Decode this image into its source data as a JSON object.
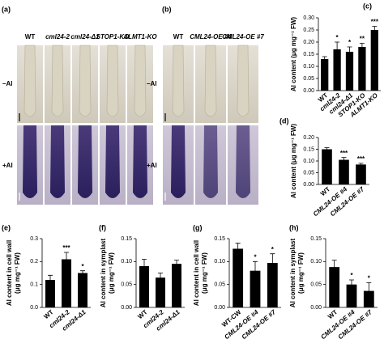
{
  "photos": [
    {
      "panel": "(a)",
      "columns": [
        "WT",
        "cml24-2",
        "cml24-Δ1",
        "STOP1-KO",
        "ALMT1-KO"
      ],
      "rows": [
        "–Al",
        "+Al"
      ]
    },
    {
      "panel": "(b)",
      "columns": [
        "WT",
        "CML24-OE #4",
        "CML24-OE #7"
      ],
      "rows": [
        "–Al",
        "+Al"
      ]
    }
  ],
  "chart_data": [
    {
      "type": "bar",
      "panel": "(c)",
      "ylabel": [
        "Al content (μg mg⁻¹ FW)"
      ],
      "color": "#000000",
      "categories": [
        "WT",
        "cml24-2",
        "cml24-Δ1",
        "STOP1-KO",
        "ALMT1-KO"
      ],
      "values": [
        0.13,
        0.17,
        0.16,
        0.18,
        0.25
      ],
      "errors": [
        0.01,
        0.03,
        0.02,
        0.015,
        0.015
      ],
      "significance": [
        null,
        "*",
        "*",
        "**",
        "***"
      ],
      "ylim": [
        0,
        0.3
      ],
      "yticks": [
        {
          "value": 0,
          "label": "0.00"
        },
        0.05,
        {
          "value": 0.1,
          "label": "0.10"
        },
        0.15,
        {
          "value": 0.2,
          "label": "0.20"
        },
        0.25,
        {
          "value": 0.3,
          "label": "0.30"
        }
      ]
    },
    {
      "type": "bar",
      "panel": "(d)",
      "ylabel": [
        "Al content (μg mg⁻¹ FW)"
      ],
      "color": "#000000",
      "categories": [
        "WT",
        "CML24-OE #4",
        "CML24-OE #7"
      ],
      "values": [
        0.15,
        0.105,
        0.085
      ],
      "errors": [
        0.007,
        0.01,
        0.005
      ],
      "significance": [
        null,
        "***",
        "***"
      ],
      "ylim": [
        0,
        0.2
      ],
      "yticks": [
        {
          "value": 0,
          "label": "0.00"
        },
        0.05,
        {
          "value": 0.1,
          "label": "0.10"
        },
        0.15,
        {
          "value": 0.2,
          "label": "0.20"
        }
      ]
    },
    {
      "type": "bar",
      "panel": "(e)",
      "ylabel": [
        "Al content in cell wall",
        "(μg mg⁻¹ FW)"
      ],
      "color": "#000000",
      "categories": [
        "WT",
        "cml24-2",
        "cml24-Δ1"
      ],
      "values": [
        0.12,
        0.21,
        0.15
      ],
      "errors": [
        0.02,
        0.03,
        0.01
      ],
      "significance": [
        null,
        "***",
        "*"
      ],
      "ylim": [
        0,
        0.3
      ],
      "yticks": [
        {
          "value": 0,
          "label": "0.0"
        },
        0.1,
        0.2,
        0.3
      ]
    },
    {
      "type": "bar",
      "panel": "(f)",
      "ylabel": [
        "Al content in symplast",
        "(μg mg⁻¹ FW)"
      ],
      "color": "#000000",
      "categories": [
        "WT",
        "cml24-2",
        "cml24-Δ1"
      ],
      "values": [
        0.09,
        0.065,
        0.095
      ],
      "errors": [
        0.015,
        0.01,
        0.008
      ],
      "ylim": [
        0,
        0.15
      ],
      "yticks": [
        {
          "value": 0,
          "label": "0.00"
        },
        0.05,
        {
          "value": 0.1,
          "label": "0.10"
        },
        0.15
      ]
    },
    {
      "type": "bar",
      "panel": "(g)",
      "ylabel": [
        "Al content in cell wall",
        "(μg mg⁻¹ FW)"
      ],
      "color": "#000000",
      "categories": [
        "WT-CW",
        "CML24-OE #4",
        "CML24-OE #7"
      ],
      "values": [
        0.128,
        0.08,
        0.097
      ],
      "errors": [
        0.012,
        0.02,
        0.02
      ],
      "significance": [
        null,
        "*",
        "*"
      ],
      "ylim": [
        0,
        0.15
      ],
      "yticks": [
        {
          "value": 0,
          "label": "0.00"
        },
        0.05,
        {
          "value": 0.1,
          "label": "0.10"
        },
        0.15
      ]
    },
    {
      "type": "bar",
      "panel": "(h)",
      "ylabel": [
        "Al content in symplast",
        "(μg mg⁻¹ FW)"
      ],
      "color": "#000000",
      "categories": [
        "WT",
        "CML24-OE #4",
        "CML24-OE #7"
      ],
      "values": [
        0.088,
        0.05,
        0.036
      ],
      "errors": [
        0.015,
        0.01,
        0.018
      ],
      "significance": [
        null,
        "*",
        "*"
      ],
      "ylim": [
        0,
        0.15
      ],
      "yticks": [
        {
          "value": 0,
          "label": "0.00"
        },
        0.05,
        {
          "value": 0.1,
          "label": "0.10"
        },
        0.15
      ]
    }
  ]
}
